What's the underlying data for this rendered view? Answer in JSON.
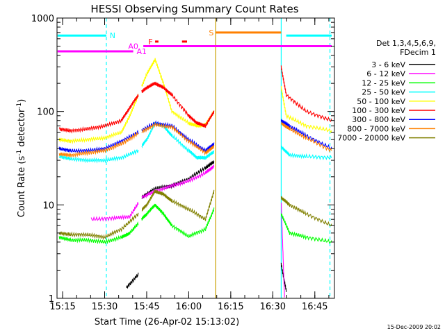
{
  "chart_data": {
    "type": "line",
    "title": "HESSI Observing Summary Count Rates",
    "xlabel": "Start Time (26-Apr-02 15:13:02)",
    "ylabel_main": "Count Rate (s",
    "ylabel_sup1": "-1",
    "ylabel_mid": " detector",
    "ylabel_sup2": "-1",
    "ylabel_end": ")",
    "yscale": "log",
    "ylim": [
      1,
      1000
    ],
    "xlim": [
      15.2167,
      16.8667
    ],
    "xticks": [
      {
        "v": 15.25,
        "label": "15:15"
      },
      {
        "v": 15.5,
        "label": "15:30"
      },
      {
        "v": 15.75,
        "label": "15:45"
      },
      {
        "v": 16.0,
        "label": "16:00"
      },
      {
        "v": 16.25,
        "label": "16:15"
      },
      {
        "v": 16.5,
        "label": "16:30"
      },
      {
        "v": 16.75,
        "label": "16:45"
      }
    ],
    "yticks": [
      {
        "v": 1,
        "label": "1"
      },
      {
        "v": 10,
        "label": "10"
      },
      {
        "v": 100,
        "label": "100"
      },
      {
        "v": 1000,
        "label": "1000"
      }
    ],
    "legend_title1": "Det 1,3,4,5,6,9,",
    "legend_title2": "FDecim 1",
    "timestamp": "15-Dec-2009 20:02",
    "gaps": [
      [
        15.7,
        15.72
      ],
      [
        16.16,
        16.55
      ]
    ],
    "series": [
      {
        "name": "3 - 6 keV",
        "color": "#000000",
        "points": [
          [
            15.63,
            1.3
          ],
          [
            15.7,
            1.8
          ],
          [
            15.72,
            12
          ],
          [
            15.8,
            15
          ],
          [
            15.9,
            16
          ],
          [
            16.0,
            19
          ],
          [
            16.1,
            25
          ],
          [
            16.15,
            29
          ],
          [
            16.55,
            2.3
          ],
          [
            16.58,
            1.2
          ]
        ]
      },
      {
        "name": "6 - 12 keV",
        "color": "#ff00ff",
        "points": [
          [
            15.42,
            7
          ],
          [
            15.55,
            7.2
          ],
          [
            15.65,
            7.5
          ],
          [
            15.72,
            12
          ],
          [
            15.8,
            14
          ],
          [
            15.9,
            16
          ],
          [
            16.0,
            18
          ],
          [
            16.1,
            22
          ],
          [
            16.15,
            26
          ],
          [
            16.55,
            11
          ],
          [
            16.57,
            1.0
          ]
        ]
      },
      {
        "name": "12 - 25 keV",
        "color": "#00ff00",
        "points": [
          [
            15.23,
            4.5
          ],
          [
            15.3,
            4.2
          ],
          [
            15.4,
            4.2
          ],
          [
            15.5,
            4.0
          ],
          [
            15.6,
            4.5
          ],
          [
            15.65,
            5
          ],
          [
            15.72,
            7
          ],
          [
            15.75,
            8
          ],
          [
            15.8,
            10
          ],
          [
            15.85,
            8
          ],
          [
            15.9,
            6
          ],
          [
            16.0,
            4.6
          ],
          [
            16.1,
            5.5
          ],
          [
            16.15,
            9
          ],
          [
            16.55,
            8
          ],
          [
            16.6,
            5
          ],
          [
            16.7,
            4.5
          ],
          [
            16.85,
            4.0
          ]
        ]
      },
      {
        "name": "25 - 50 keV",
        "color": "#00ffff",
        "points": [
          [
            15.23,
            33
          ],
          [
            15.3,
            31
          ],
          [
            15.4,
            30
          ],
          [
            15.5,
            30
          ],
          [
            15.6,
            32
          ],
          [
            15.7,
            38
          ],
          [
            15.75,
            50
          ],
          [
            15.8,
            75
          ],
          [
            15.85,
            70
          ],
          [
            15.9,
            55
          ],
          [
            16.0,
            38
          ],
          [
            16.05,
            32
          ],
          [
            16.1,
            32
          ],
          [
            16.15,
            37
          ],
          [
            16.55,
            42
          ],
          [
            16.6,
            34
          ],
          [
            16.7,
            33
          ],
          [
            16.85,
            32
          ]
        ]
      },
      {
        "name": "50 - 100 keV",
        "color": "#ffff00",
        "points": [
          [
            15.23,
            50
          ],
          [
            15.3,
            48
          ],
          [
            15.4,
            50
          ],
          [
            15.5,
            52
          ],
          [
            15.6,
            60
          ],
          [
            15.65,
            90
          ],
          [
            15.7,
            150
          ],
          [
            15.75,
            250
          ],
          [
            15.8,
            360
          ],
          [
            15.85,
            200
          ],
          [
            15.9,
            100
          ],
          [
            16.0,
            75
          ],
          [
            16.05,
            70
          ],
          [
            16.1,
            72
          ],
          [
            16.15,
            100
          ],
          [
            16.55,
            180
          ],
          [
            16.58,
            90
          ],
          [
            16.7,
            70
          ],
          [
            16.85,
            62
          ]
        ]
      },
      {
        "name": "100 - 300 keV",
        "color": "#ff0000",
        "points": [
          [
            15.23,
            65
          ],
          [
            15.3,
            62
          ],
          [
            15.4,
            65
          ],
          [
            15.5,
            70
          ],
          [
            15.6,
            80
          ],
          [
            15.65,
            110
          ],
          [
            15.7,
            150
          ],
          [
            15.75,
            180
          ],
          [
            15.8,
            200
          ],
          [
            15.85,
            180
          ],
          [
            15.9,
            150
          ],
          [
            16.0,
            90
          ],
          [
            16.05,
            75
          ],
          [
            16.1,
            70
          ],
          [
            16.15,
            100
          ],
          [
            16.55,
            300
          ],
          [
            16.58,
            150
          ],
          [
            16.7,
            100
          ],
          [
            16.85,
            80
          ]
        ]
      },
      {
        "name": "300 - 800 keV",
        "color": "#0000ff",
        "points": [
          [
            15.23,
            40
          ],
          [
            15.3,
            38
          ],
          [
            15.4,
            38
          ],
          [
            15.5,
            40
          ],
          [
            15.6,
            48
          ],
          [
            15.7,
            60
          ],
          [
            15.8,
            75
          ],
          [
            15.9,
            70
          ],
          [
            16.0,
            50
          ],
          [
            16.1,
            38
          ],
          [
            16.15,
            45
          ],
          [
            16.55,
            80
          ],
          [
            16.6,
            70
          ],
          [
            16.7,
            55
          ],
          [
            16.85,
            40
          ]
        ]
      },
      {
        "name": "800 - 7000 keV",
        "color": "#ff8000",
        "points": [
          [
            15.23,
            35
          ],
          [
            15.3,
            34
          ],
          [
            15.4,
            36
          ],
          [
            15.5,
            38
          ],
          [
            15.6,
            45
          ],
          [
            15.7,
            58
          ],
          [
            15.8,
            72
          ],
          [
            15.9,
            68
          ],
          [
            16.0,
            48
          ],
          [
            16.1,
            36
          ],
          [
            16.15,
            42
          ],
          [
            16.55,
            75
          ],
          [
            16.6,
            65
          ],
          [
            16.7,
            52
          ],
          [
            16.85,
            38
          ]
        ]
      },
      {
        "name": "7000 - 20000 keV",
        "color": "#808000",
        "points": [
          [
            15.23,
            5
          ],
          [
            15.3,
            4.8
          ],
          [
            15.4,
            4.8
          ],
          [
            15.5,
            4.5
          ],
          [
            15.6,
            5.5
          ],
          [
            15.7,
            8
          ],
          [
            15.75,
            10
          ],
          [
            15.8,
            14
          ],
          [
            15.85,
            13
          ],
          [
            15.9,
            11
          ],
          [
            16.0,
            9
          ],
          [
            16.1,
            7
          ],
          [
            16.15,
            14
          ],
          [
            16.55,
            12
          ],
          [
            16.6,
            10
          ],
          [
            16.7,
            8
          ],
          [
            16.85,
            6
          ]
        ]
      }
    ],
    "flags": [
      {
        "label": "N",
        "color": "#00ffff",
        "y": 650,
        "segments": [
          [
            15.22,
            15.51
          ],
          [
            16.58,
            16.85
          ]
        ],
        "label_x": 15.53
      },
      {
        "label": "S",
        "color": "#ff8000",
        "y": 700,
        "segments": [
          [
            16.16,
            16.55
          ]
        ],
        "label_x": 16.12
      },
      {
        "label": "A0",
        "color": "#ff00ff",
        "y": 500,
        "segments": [
          [
            15.73,
            16.85
          ]
        ],
        "label_x": 15.64
      },
      {
        "label": "A1",
        "color": "#ff00ff",
        "y": 440,
        "segments": [
          [
            15.22,
            15.67
          ]
        ],
        "label_x": 15.69
      },
      {
        "label": "F",
        "color": "#ff0000",
        "y": 560,
        "segments": [
          [
            15.8,
            15.82
          ],
          [
            15.96,
            15.99
          ]
        ],
        "label_x": 15.76
      }
    ],
    "vlines": [
      {
        "x": 15.51,
        "color": "#00ffff",
        "dash": true
      },
      {
        "x": 16.16,
        "color": "#c8a000",
        "dash": false
      },
      {
        "x": 16.55,
        "color": "#00ffff",
        "dash": false
      },
      {
        "x": 16.84,
        "color": "#00ffff",
        "dash": true
      }
    ]
  }
}
